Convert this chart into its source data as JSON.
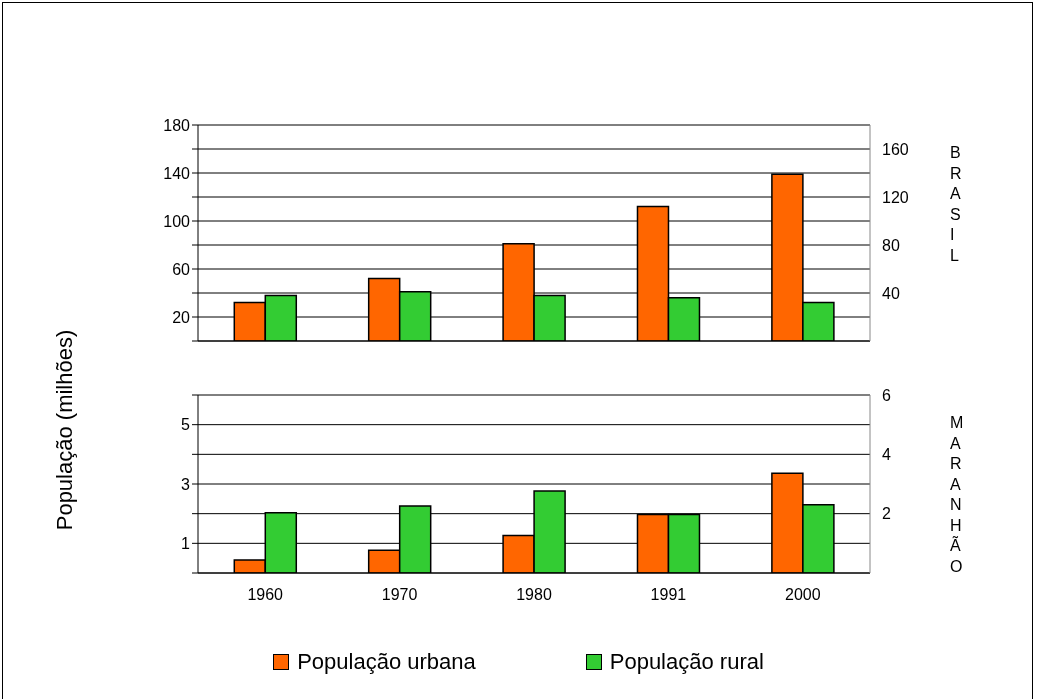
{
  "chart_data": [
    {
      "type": "bar",
      "ylabel": "População (milhões)",
      "categories": [
        "1960",
        "1970",
        "1980",
        "1991",
        "2000"
      ],
      "series": [
        {
          "color": "#ff6600",
          "values": [
            32,
            52,
            81,
            112,
            139
          ]
        },
        {
          "color": "#33cc33",
          "values": [
            38,
            41,
            38,
            36,
            32
          ]
        }
      ],
      "ylim": [
        0,
        180
      ],
      "yticks": [
        {
          "value": 0,
          "label": null
        },
        20,
        {
          "value": 40,
          "label": null
        },
        60,
        {
          "value": 80,
          "label": null
        },
        100,
        {
          "value": 120,
          "label": null
        },
        140,
        {
          "value": 160,
          "label": null
        },
        180
      ],
      "y2lim": [
        0,
        180
      ],
      "y2ticks": [
        40,
        80,
        120,
        160
      ],
      "grid": "y",
      "tick_labels": "y",
      "annotations": [
        "BRASIL"
      ]
    },
    {
      "type": "bar",
      "categories": [
        "1960",
        "1970",
        "1980",
        "1991",
        "2000"
      ],
      "series": [
        {
          "name": "População urbana",
          "color": "#ff6600",
          "values": [
            0.44,
            0.77,
            1.26,
            1.97,
            3.36
          ]
        },
        {
          "name": "População rural",
          "color": "#33cc33",
          "values": [
            2.03,
            2.26,
            2.76,
            1.97,
            2.3
          ]
        }
      ],
      "ylim": [
        0,
        6
      ],
      "yticks": [
        {
          "value": 0,
          "label": null
        },
        1,
        {
          "value": 2,
          "label": null
        },
        3,
        {
          "value": 4,
          "label": null
        },
        5,
        {
          "value": 6,
          "label": null
        }
      ],
      "y2lim": [
        0,
        6
      ],
      "y2ticks": [
        2,
        4,
        6
      ],
      "grid": "y",
      "legend": "bottom",
      "annotations": [
        "MARANHÃO"
      ]
    }
  ]
}
